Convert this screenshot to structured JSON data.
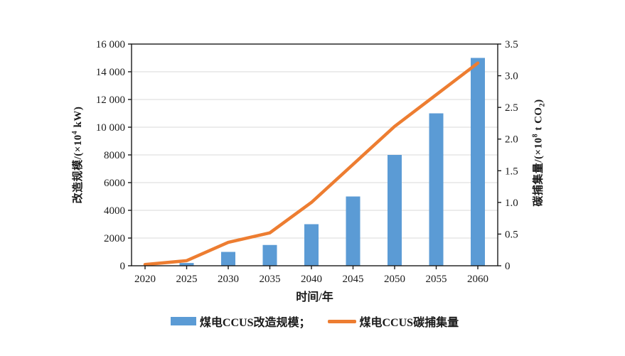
{
  "chart_data": {
    "type": "bar+line combo, dual y-axis",
    "categories": [
      "2020",
      "2025",
      "2030",
      "2035",
      "2040",
      "2045",
      "2050",
      "2055",
      "2060"
    ],
    "series": [
      {
        "name": "煤电CCUS改造规模",
        "type": "bar",
        "axis": "left",
        "color": "#5B9BD5",
        "values": [
          0,
          200,
          1000,
          1500,
          3000,
          5000,
          8000,
          11000,
          15000
        ]
      },
      {
        "name": "煤电CCUS碳捕集量",
        "type": "line",
        "axis": "right",
        "color": "#ED7D31",
        "values": [
          0.02,
          0.08,
          0.37,
          0.52,
          1.0,
          1.6,
          2.2,
          2.7,
          3.2
        ]
      }
    ],
    "left_axis": {
      "label_text": "改造规模/(×10⁴ kW)",
      "label_parts": {
        "main": "改造规模/(×10",
        "sup": "4",
        "tail": " kW)"
      },
      "ticks": [
        0,
        2000,
        4000,
        6000,
        8000,
        10000,
        12000,
        14000,
        16000
      ],
      "tick_labels": [
        "0",
        "2000",
        "4000",
        "6000",
        "8000",
        "10 000",
        "12 000",
        "14 000",
        "16 000"
      ],
      "min": 0,
      "max": 16000
    },
    "right_axis": {
      "label_text": "碳捕集量/(×10⁸ t CO₂)",
      "label_parts": {
        "main": "碳捕集量/(×10",
        "sup": "8",
        "mid": " t CO",
        "sub": "2",
        "tail": ")"
      },
      "ticks": [
        0,
        0.5,
        1.0,
        1.5,
        2.0,
        2.5,
        3.0,
        3.5
      ],
      "tick_labels": [
        "0",
        "0.5",
        "1.0",
        "1.5",
        "2.0",
        "2.5",
        "3.0",
        "3.5"
      ],
      "min": 0,
      "max": 3.5
    },
    "x_axis": {
      "label": "时间/年"
    },
    "legend": {
      "position": "bottom-center",
      "items": [
        {
          "swatch": "bar",
          "color": "#5B9BD5",
          "label": "煤电CCUS改造规模；"
        },
        {
          "swatch": "line",
          "color": "#ED7D31",
          "label": "煤电CCUS碳捕集量"
        }
      ]
    },
    "grid": true,
    "grid_color": "#d9d9d9",
    "axis_color": "#1a1a1a",
    "background": "#ffffff"
  }
}
